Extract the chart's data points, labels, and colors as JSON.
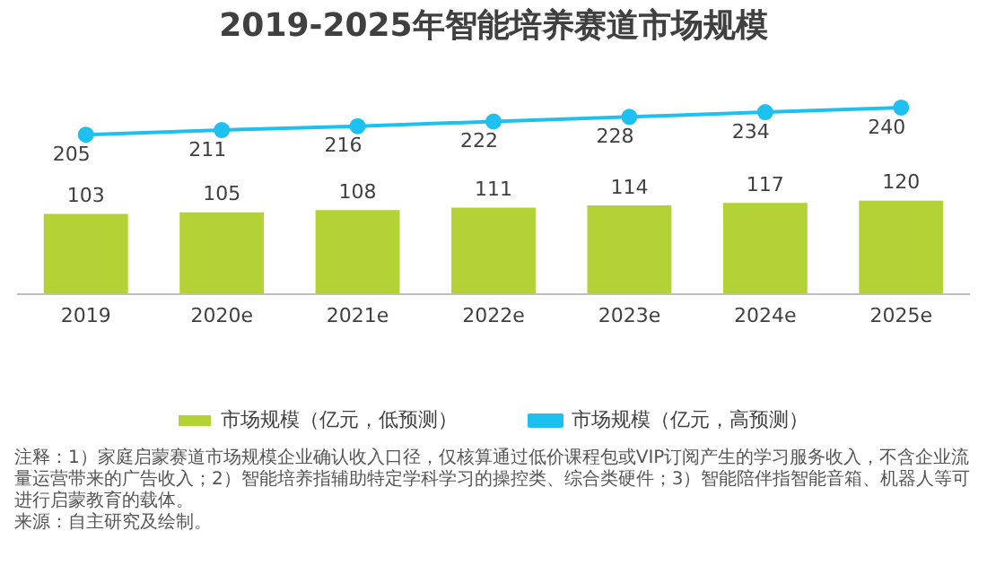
{
  "chart_data": {
    "type": "bar",
    "title": "2019-2025年智能培养赛道市场规模",
    "categories": [
      "2019",
      "2020e",
      "2021e",
      "2022e",
      "2023e",
      "2024e",
      "2025e"
    ],
    "series": [
      {
        "name": "市场规模（亿元，低预测）",
        "color": "#b2d235",
        "values": [
          103,
          105,
          108,
          111,
          114,
          117,
          120
        ]
      },
      {
        "name": "市场规模（亿元，高预测）",
        "type": "line",
        "color": "#1ec0f0",
        "values": [
          205,
          211,
          216,
          222,
          228,
          234,
          240
        ]
      }
    ],
    "tick_labels": "x",
    "data_labels": true,
    "grid": false,
    "legend": "bottom",
    "marker": "circle",
    "annotations": [
      "注释：1）家庭启蒙赛道市场规模企业确认收入口径，仅核算通过低价课程包或VIP订阅产生的学习服务收入，不含企业流量运营带来的广告收入；2）智能培养指辅助特定学科学习的操控类、综合类硬件；3）智能陪伴指智能音箱、机器人等可进行启蒙教育的载体。",
      "来源：自主研究及绘制。"
    ]
  }
}
